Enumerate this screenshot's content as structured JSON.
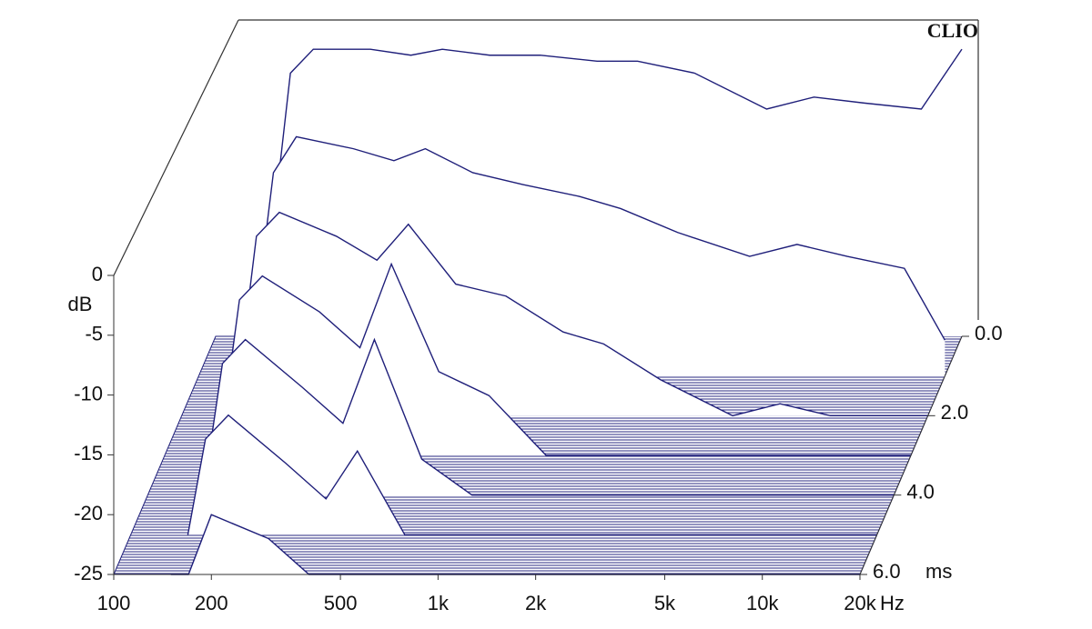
{
  "chart_data": {
    "type": "waterfall",
    "watermark": "CLIO",
    "ylabel": "dB",
    "xlabel": "Hz",
    "zlabel": "ms",
    "log_x": true,
    "color": "#1f1f7a",
    "x": [
      150,
      170,
      200,
      300,
      400,
      500,
      700,
      1000,
      1500,
      2000,
      3000,
      5000,
      7000,
      10000,
      15000,
      20000
    ],
    "z": [
      0,
      1,
      2,
      3,
      4,
      5,
      6
    ],
    "series": [
      {
        "values": [
          -16,
          -3,
          -1,
          -1,
          -1.5,
          -1,
          -1.5,
          -1.5,
          -2,
          -2,
          -3,
          -6,
          -5,
          -5.5,
          -6,
          -1
        ]
      },
      {
        "values": [
          -20,
          -8,
          -5,
          -6,
          -7,
          -6,
          -8,
          -9,
          -10,
          -11,
          -13,
          -15,
          -14,
          -15,
          -16,
          -22
        ]
      },
      {
        "values": [
          -22,
          -10,
          -8,
          -10,
          -12,
          -9,
          -14,
          -15,
          -18,
          -19,
          -22,
          -25,
          -24,
          -25,
          -25,
          -25
        ]
      },
      {
        "values": [
          -23,
          -12,
          -10,
          -13,
          -16,
          -9,
          -18,
          -20,
          -25,
          -25,
          -25,
          -25,
          -25,
          -25,
          -25,
          -25
        ]
      },
      {
        "values": [
          -24,
          -14,
          -12,
          -16,
          -19,
          -12,
          -22,
          -25,
          -25,
          -25,
          -25,
          -25,
          -25,
          -25,
          -25,
          -25
        ]
      },
      {
        "values": [
          -25,
          -17,
          -15,
          -19,
          -22,
          -18,
          -25,
          -25,
          -25,
          -25,
          -25,
          -25,
          -25,
          -25,
          -25,
          -25
        ]
      },
      {
        "values": [
          -25,
          -25,
          -20,
          -22,
          -25,
          -25,
          -25,
          -25,
          -25,
          -25,
          -25,
          -25,
          -25,
          -25,
          -25,
          -25
        ]
      }
    ],
    "xlim": [
      100,
      20000
    ],
    "xticks": [
      100,
      200,
      500,
      {
        "value": 1000,
        "label": "1k"
      },
      {
        "value": 2000,
        "label": "2k"
      },
      {
        "value": 5000,
        "label": "5k"
      },
      {
        "value": 10000,
        "label": "10k"
      },
      {
        "value": 20000,
        "label": "20k"
      }
    ],
    "ylim": [
      -25,
      0
    ],
    "yticks": [
      0,
      -5,
      -10,
      -15,
      -20,
      -25
    ],
    "zlim": [
      0,
      6
    ],
    "zticks": [
      {
        "value": 0,
        "label": "0.0"
      },
      {
        "value": 2,
        "label": "2.0"
      },
      {
        "value": 4,
        "label": "4.0"
      },
      {
        "value": 6,
        "label": "6.0"
      }
    ]
  }
}
